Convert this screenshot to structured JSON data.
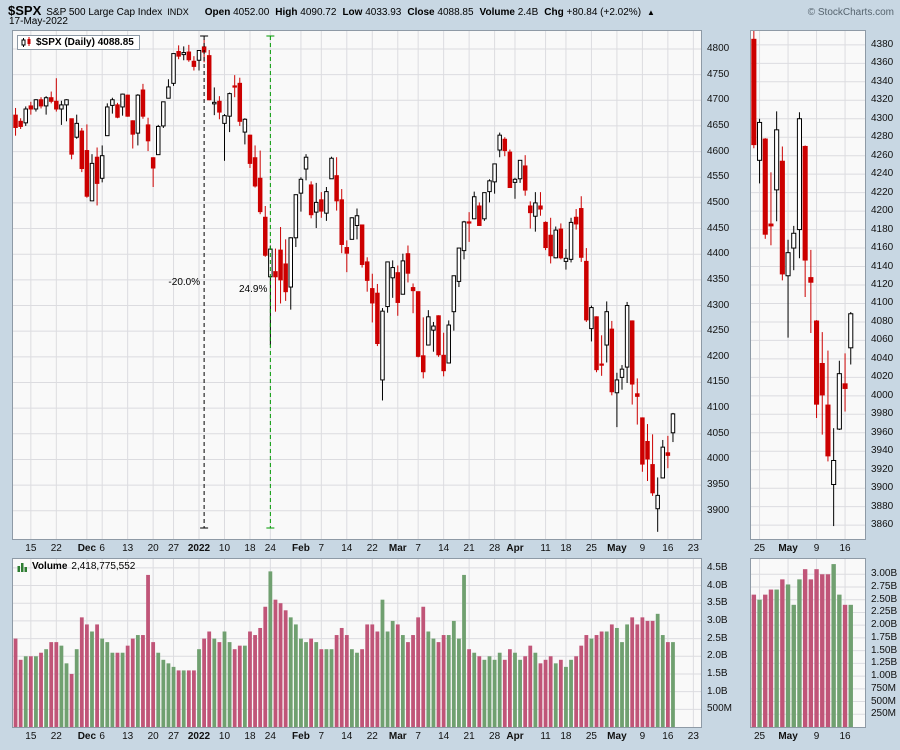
{
  "header": {
    "symbol": "$SPX",
    "name": "S&P 500 Large Cap Index",
    "exchange": "INDX",
    "date": "17-May-2022",
    "open_label": "Open",
    "open": "4052.00",
    "high_label": "High",
    "high": "4090.72",
    "low_label": "Low",
    "low": "4033.93",
    "close_label": "Close",
    "close": "4088.85",
    "volume_label": "Volume",
    "volume": "2.4B",
    "chg_label": "Chg",
    "chg": "+80.84 (+2.02%)",
    "arrow": "▲",
    "copyright": "© StockCharts.com"
  },
  "price_legend": "$SPX (Daily) 4088.85",
  "volume_legend": {
    "label": "Volume",
    "value": "2,418,775,552"
  },
  "annotations": {
    "drop": "-20.0%",
    "rise": "24.9%"
  },
  "colors": {
    "bg": "#c8d7e3",
    "panel": "#f9f9f9",
    "border": "#8e9aa6",
    "grid": "#dcdce0",
    "down": "#cc0000",
    "up_fill": "#ffffff",
    "up_stroke": "#000000",
    "vol_up": "#70a070",
    "vol_down": "#c05578",
    "ann_black": "#000000",
    "ann_green": "#009900"
  },
  "chart_data": {
    "type": "candlestick",
    "symbol": "$SPX",
    "timeframe": "Daily",
    "title": "$SPX (Daily) 4088.85",
    "slots": 135,
    "y_axis": {
      "min": 3845,
      "max": 4835,
      "tick_min": 3900,
      "tick_max": 4800,
      "tick_step": 50
    },
    "volume_axis": {
      "max": 4.75,
      "ticks": [
        [
          0.5,
          "500M"
        ],
        [
          1,
          "1.0B"
        ],
        [
          1.5,
          "1.5B"
        ],
        [
          2,
          "2.0B"
        ],
        [
          2.5,
          "2.5B"
        ],
        [
          3,
          "3.0B"
        ],
        [
          3.5,
          "3.5B"
        ],
        [
          4,
          "4.0B"
        ],
        [
          4.5,
          "4.5B"
        ]
      ]
    },
    "x_ticks": [
      {
        "i": 3,
        "l": "15"
      },
      {
        "i": 8,
        "l": "22"
      },
      {
        "i": 14,
        "l": "Dec",
        "b": true
      },
      {
        "i": 17,
        "l": "6"
      },
      {
        "i": 22,
        "l": "13"
      },
      {
        "i": 27,
        "l": "20"
      },
      {
        "i": 31,
        "l": "27"
      },
      {
        "i": 36,
        "l": "2022",
        "b": true
      },
      {
        "i": 41,
        "l": "10"
      },
      {
        "i": 46,
        "l": "18"
      },
      {
        "i": 50,
        "l": "24"
      },
      {
        "i": 56,
        "l": "Feb",
        "b": true
      },
      {
        "i": 60,
        "l": "7"
      },
      {
        "i": 65,
        "l": "14"
      },
      {
        "i": 70,
        "l": "22"
      },
      {
        "i": 75,
        "l": "Mar",
        "b": true
      },
      {
        "i": 79,
        "l": "7"
      },
      {
        "i": 84,
        "l": "14"
      },
      {
        "i": 89,
        "l": "21"
      },
      {
        "i": 94,
        "l": "28"
      },
      {
        "i": 98,
        "l": "Apr",
        "b": true
      },
      {
        "i": 104,
        "l": "11"
      },
      {
        "i": 108,
        "l": "18"
      },
      {
        "i": 113,
        "l": "25"
      },
      {
        "i": 118,
        "l": "May",
        "b": true
      },
      {
        "i": 123,
        "l": "9"
      },
      {
        "i": 128,
        "l": "16"
      },
      {
        "i": 133,
        "l": "23"
      }
    ],
    "annotation_lines": {
      "drop_index": 37,
      "rise_index": 50,
      "label_value": 4340
    },
    "candles": [
      [
        "2021-11-10",
        4671,
        4685,
        4631,
        4647,
        2.5
      ],
      [
        "2021-11-11",
        4659,
        4665,
        4644,
        4649,
        1.9
      ],
      [
        "2021-11-12",
        4656,
        4688,
        4650,
        4683,
        2.0
      ],
      [
        "2021-11-15",
        4689,
        4697,
        4672,
        4683,
        2.0
      ],
      [
        "2021-11-16",
        4683,
        4702,
        4678,
        4701,
        2.0
      ],
      [
        "2021-11-17",
        4701,
        4706,
        4684,
        4689,
        2.1
      ],
      [
        "2021-11-18",
        4689,
        4708,
        4672,
        4705,
        2.2
      ],
      [
        "2021-11-19",
        4705,
        4717,
        4694,
        4698,
        2.4
      ],
      [
        "2021-11-22",
        4698,
        4743,
        4678,
        4683,
        2.4
      ],
      [
        "2021-11-23",
        4683,
        4699,
        4652,
        4691,
        2.3
      ],
      [
        "2021-11-24",
        4691,
        4702,
        4659,
        4701,
        1.8
      ],
      [
        "2021-11-26",
        4664,
        4664,
        4585,
        4595,
        1.5
      ],
      [
        "2021-11-29",
        4628,
        4672,
        4625,
        4655,
        2.2
      ],
      [
        "2021-11-30",
        4640,
        4646,
        4560,
        4567,
        3.1
      ],
      [
        "2021-12-01",
        4602,
        4653,
        4510,
        4513,
        2.9
      ],
      [
        "2021-12-02",
        4504,
        4595,
        4504,
        4577,
        2.7
      ],
      [
        "2021-12-03",
        4589,
        4608,
        4495,
        4538,
        2.9
      ],
      [
        "2021-12-06",
        4548,
        4612,
        4540,
        4592,
        2.5
      ],
      [
        "2021-12-07",
        4631,
        4694,
        4631,
        4687,
        2.4
      ],
      [
        "2021-12-08",
        4690,
        4705,
        4674,
        4701,
        2.1
      ],
      [
        "2021-12-09",
        4691,
        4695,
        4665,
        4667,
        2.1
      ],
      [
        "2021-12-10",
        4687,
        4713,
        4670,
        4712,
        2.1
      ],
      [
        "2021-12-13",
        4710,
        4711,
        4668,
        4669,
        2.3
      ],
      [
        "2021-12-14",
        4660,
        4661,
        4606,
        4634,
        2.5
      ],
      [
        "2021-12-15",
        4636,
        4712,
        4612,
        4710,
        2.6
      ],
      [
        "2021-12-16",
        4720,
        4732,
        4664,
        4669,
        2.6
      ],
      [
        "2021-12-17",
        4652,
        4666,
        4601,
        4621,
        4.3
      ],
      [
        "2021-12-20",
        4588,
        4589,
        4531,
        4568,
        2.4
      ],
      [
        "2021-12-21",
        4594,
        4652,
        4594,
        4649,
        2.1
      ],
      [
        "2021-12-22",
        4650,
        4697,
        4646,
        4697,
        1.9
      ],
      [
        "2021-12-23",
        4704,
        4741,
        4704,
        4726,
        1.8
      ],
      [
        "2021-12-27",
        4733,
        4791,
        4728,
        4791,
        1.7
      ],
      [
        "2021-12-28",
        4795,
        4807,
        4780,
        4786,
        1.6
      ],
      [
        "2021-12-29",
        4789,
        4805,
        4778,
        4793,
        1.6
      ],
      [
        "2021-12-30",
        4794,
        4808,
        4775,
        4779,
        1.6
      ],
      [
        "2021-12-31",
        4776,
        4786,
        4758,
        4766,
        1.6
      ],
      [
        "2022-01-03",
        4778,
        4797,
        4758,
        4797,
        2.2
      ],
      [
        "2022-01-04",
        4804,
        4819,
        4774,
        4794,
        2.5
      ],
      [
        "2022-01-05",
        4787,
        4798,
        4700,
        4701,
        2.7
      ],
      [
        "2022-01-06",
        4693,
        4725,
        4671,
        4696,
        2.5
      ],
      [
        "2022-01-07",
        4698,
        4708,
        4663,
        4677,
        2.4
      ],
      [
        "2022-01-10",
        4655,
        4673,
        4582,
        4670,
        2.7
      ],
      [
        "2022-01-11",
        4669,
        4715,
        4638,
        4713,
        2.4
      ],
      [
        "2022-01-12",
        4728,
        4749,
        4706,
        4726,
        2.2
      ],
      [
        "2022-01-13",
        4733,
        4744,
        4650,
        4659,
        2.3
      ],
      [
        "2022-01-14",
        4638,
        4665,
        4614,
        4663,
        2.3
      ],
      [
        "2022-01-18",
        4632,
        4633,
        4568,
        4577,
        2.7
      ],
      [
        "2022-01-19",
        4588,
        4612,
        4530,
        4533,
        2.6
      ],
      [
        "2022-01-20",
        4548,
        4602,
        4478,
        4483,
        2.8
      ],
      [
        "2022-01-21",
        4472,
        4494,
        4395,
        4398,
        3.4
      ],
      [
        "2022-01-24",
        4356,
        4417,
        4223,
        4410,
        4.4
      ],
      [
        "2022-01-25",
        4366,
        4411,
        4288,
        4356,
        3.6
      ],
      [
        "2022-01-26",
        4408,
        4453,
        4304,
        4350,
        3.5
      ],
      [
        "2022-01-27",
        4381,
        4429,
        4309,
        4327,
        3.3
      ],
      [
        "2022-01-28",
        4336,
        4433,
        4292,
        4432,
        3.1
      ],
      [
        "2022-01-31",
        4432,
        4516,
        4414,
        4516,
        2.9
      ],
      [
        "2022-02-01",
        4519,
        4550,
        4483,
        4546,
        2.5
      ],
      [
        "2022-02-02",
        4566,
        4595,
        4544,
        4589,
        2.4
      ],
      [
        "2022-02-03",
        4535,
        4542,
        4470,
        4477,
        2.5
      ],
      [
        "2022-02-04",
        4482,
        4539,
        4451,
        4501,
        2.4
      ],
      [
        "2022-02-07",
        4506,
        4521,
        4471,
        4484,
        2.2
      ],
      [
        "2022-02-08",
        4480,
        4531,
        4465,
        4522,
        2.2
      ],
      [
        "2022-02-09",
        4547,
        4590,
        4547,
        4587,
        2.2
      ],
      [
        "2022-02-10",
        4553,
        4589,
        4485,
        4504,
        2.6
      ],
      [
        "2022-02-11",
        4506,
        4527,
        4402,
        4419,
        2.8
      ],
      [
        "2022-02-14",
        4413,
        4427,
        4365,
        4402,
        2.6
      ],
      [
        "2022-02-15",
        4429,
        4472,
        4429,
        4471,
        2.2
      ],
      [
        "2022-02-16",
        4456,
        4489,
        4429,
        4475,
        2.1
      ],
      [
        "2022-02-17",
        4457,
        4457,
        4374,
        4380,
        2.2
      ],
      [
        "2022-02-18",
        4385,
        4394,
        4327,
        4349,
        2.9
      ],
      [
        "2022-02-22",
        4333,
        4362,
        4267,
        4305,
        2.9
      ],
      [
        "2022-02-23",
        4324,
        4342,
        4221,
        4226,
        2.7
      ],
      [
        "2022-02-24",
        4155,
        4295,
        4115,
        4289,
        3.6
      ],
      [
        "2022-02-25",
        4298,
        4385,
        4286,
        4385,
        2.7
      ],
      [
        "2022-02-28",
        4354,
        4388,
        4315,
        4374,
        3.0
      ],
      [
        "2022-03-01",
        4364,
        4378,
        4280,
        4306,
        2.9
      ],
      [
        "2022-03-02",
        4322,
        4401,
        4322,
        4387,
        2.6
      ],
      [
        "2022-03-03",
        4401,
        4417,
        4345,
        4363,
        2.4
      ],
      [
        "2022-03-04",
        4335,
        4343,
        4285,
        4329,
        2.6
      ],
      [
        "2022-03-07",
        4327,
        4327,
        4199,
        4201,
        3.1
      ],
      [
        "2022-03-08",
        4202,
        4277,
        4158,
        4171,
        3.4
      ],
      [
        "2022-03-09",
        4223,
        4291,
        4223,
        4278,
        2.7
      ],
      [
        "2022-03-10",
        4252,
        4268,
        4210,
        4260,
        2.5
      ],
      [
        "2022-03-11",
        4280,
        4281,
        4200,
        4204,
        2.4
      ],
      [
        "2022-03-14",
        4203,
        4247,
        4162,
        4173,
        2.6
      ],
      [
        "2022-03-15",
        4188,
        4271,
        4188,
        4262,
        2.6
      ],
      [
        "2022-03-16",
        4288,
        4358,
        4251,
        4358,
        3.0
      ],
      [
        "2022-03-17",
        4347,
        4412,
        4336,
        4412,
        2.5
      ],
      [
        "2022-03-18",
        4407,
        4465,
        4390,
        4463,
        4.3
      ],
      [
        "2022-03-21",
        4463,
        4482,
        4424,
        4461,
        2.2
      ],
      [
        "2022-03-22",
        4469,
        4522,
        4469,
        4512,
        2.1
      ],
      [
        "2022-03-23",
        4494,
        4501,
        4455,
        4456,
        2.0
      ],
      [
        "2022-03-24",
        4469,
        4520,
        4465,
        4520,
        1.9
      ],
      [
        "2022-03-25",
        4522,
        4546,
        4501,
        4543,
        2.0
      ],
      [
        "2022-03-28",
        4541,
        4576,
        4518,
        4576,
        1.9
      ],
      [
        "2022-03-29",
        4603,
        4637,
        4589,
        4632,
        2.1
      ],
      [
        "2022-03-30",
        4624,
        4628,
        4591,
        4602,
        1.9
      ],
      [
        "2022-03-31",
        4599,
        4604,
        4530,
        4530,
        2.2
      ],
      [
        "2022-04-01",
        4540,
        4549,
        4508,
        4546,
        2.1
      ],
      [
        "2022-04-04",
        4547,
        4583,
        4539,
        4583,
        1.9
      ],
      [
        "2022-04-05",
        4572,
        4593,
        4514,
        4525,
        2.0
      ],
      [
        "2022-04-06",
        4494,
        4503,
        4450,
        4481,
        2.3
      ],
      [
        "2022-04-07",
        4474,
        4521,
        4444,
        4500,
        2.1
      ],
      [
        "2022-04-08",
        4494,
        4521,
        4475,
        4488,
        1.8
      ],
      [
        "2022-04-11",
        4462,
        4464,
        4408,
        4413,
        1.9
      ],
      [
        "2022-04-12",
        4437,
        4471,
        4382,
        4397,
        2.0
      ],
      [
        "2022-04-13",
        4393,
        4454,
        4392,
        4447,
        1.8
      ],
      [
        "2022-04-14",
        4449,
        4460,
        4390,
        4393,
        1.9
      ],
      [
        "2022-04-18",
        4386,
        4410,
        4370,
        4392,
        1.7
      ],
      [
        "2022-04-19",
        4390,
        4471,
        4384,
        4462,
        1.9
      ],
      [
        "2022-04-20",
        4472,
        4488,
        4448,
        4459,
        2.0
      ],
      [
        "2022-04-21",
        4489,
        4513,
        4385,
        4394,
        2.3
      ],
      [
        "2022-04-22",
        4386,
        4412,
        4268,
        4272,
        2.6
      ],
      [
        "2022-04-25",
        4255,
        4300,
        4230,
        4296,
        2.5
      ],
      [
        "2022-04-26",
        4278,
        4279,
        4170,
        4175,
        2.6
      ],
      [
        "2022-04-27",
        4186,
        4242,
        4163,
        4184,
        2.7
      ],
      [
        "2022-04-28",
        4223,
        4308,
        4189,
        4288,
        2.7
      ],
      [
        "2022-04-29",
        4254,
        4270,
        4125,
        4132,
        2.9
      ],
      [
        "2022-05-02",
        4130,
        4169,
        4063,
        4155,
        2.8
      ],
      [
        "2022-05-03",
        4160,
        4184,
        4136,
        4176,
        2.4
      ],
      [
        "2022-05-04",
        4180,
        4307,
        4149,
        4300,
        2.9
      ],
      [
        "2022-05-05",
        4270,
        4271,
        4107,
        4147,
        3.1
      ],
      [
        "2022-05-06",
        4128,
        4158,
        4068,
        4123,
        2.9
      ],
      [
        "2022-05-09",
        4081,
        4082,
        3976,
        3991,
        3.1
      ],
      [
        "2022-05-10",
        4035,
        4069,
        3958,
        4001,
        3.0
      ],
      [
        "2022-05-11",
        3990,
        4049,
        3929,
        3935,
        3.0
      ],
      [
        "2022-05-12",
        3904,
        3965,
        3859,
        3930,
        3.2
      ],
      [
        "2022-05-13",
        3964,
        4038,
        3963,
        4024,
        2.6
      ],
      [
        "2022-05-16",
        4013,
        4046,
        3983,
        4008,
        2.4
      ],
      [
        "2022-05-17",
        4052,
        4090.72,
        4033.93,
        4088.85,
        2.4
      ]
    ],
    "mini": {
      "start_index": 112,
      "slots": 20,
      "y_axis": {
        "min": 3845,
        "max": 4395,
        "tick_min": 3860,
        "tick_max": 4380,
        "tick_step": 20
      },
      "volume_axis": {
        "max": 3.3,
        "ticks": [
          [
            0.25,
            "250M"
          ],
          [
            0.5,
            "500M"
          ],
          [
            0.75,
            "750M"
          ],
          [
            1,
            "1.00B"
          ],
          [
            1.25,
            "1.25B"
          ],
          [
            1.5,
            "1.50B"
          ],
          [
            1.75,
            "1.75B"
          ],
          [
            2,
            "2.00B"
          ],
          [
            2.25,
            "2.25B"
          ],
          [
            2.5,
            "2.50B"
          ],
          [
            2.75,
            "2.75B"
          ],
          [
            3,
            "3.00B"
          ]
        ]
      },
      "x_ticks": [
        {
          "i": 1,
          "l": "25"
        },
        {
          "i": 6,
          "l": "May",
          "b": true
        },
        {
          "i": 11,
          "l": "9"
        },
        {
          "i": 16,
          "l": "16"
        }
      ]
    }
  }
}
